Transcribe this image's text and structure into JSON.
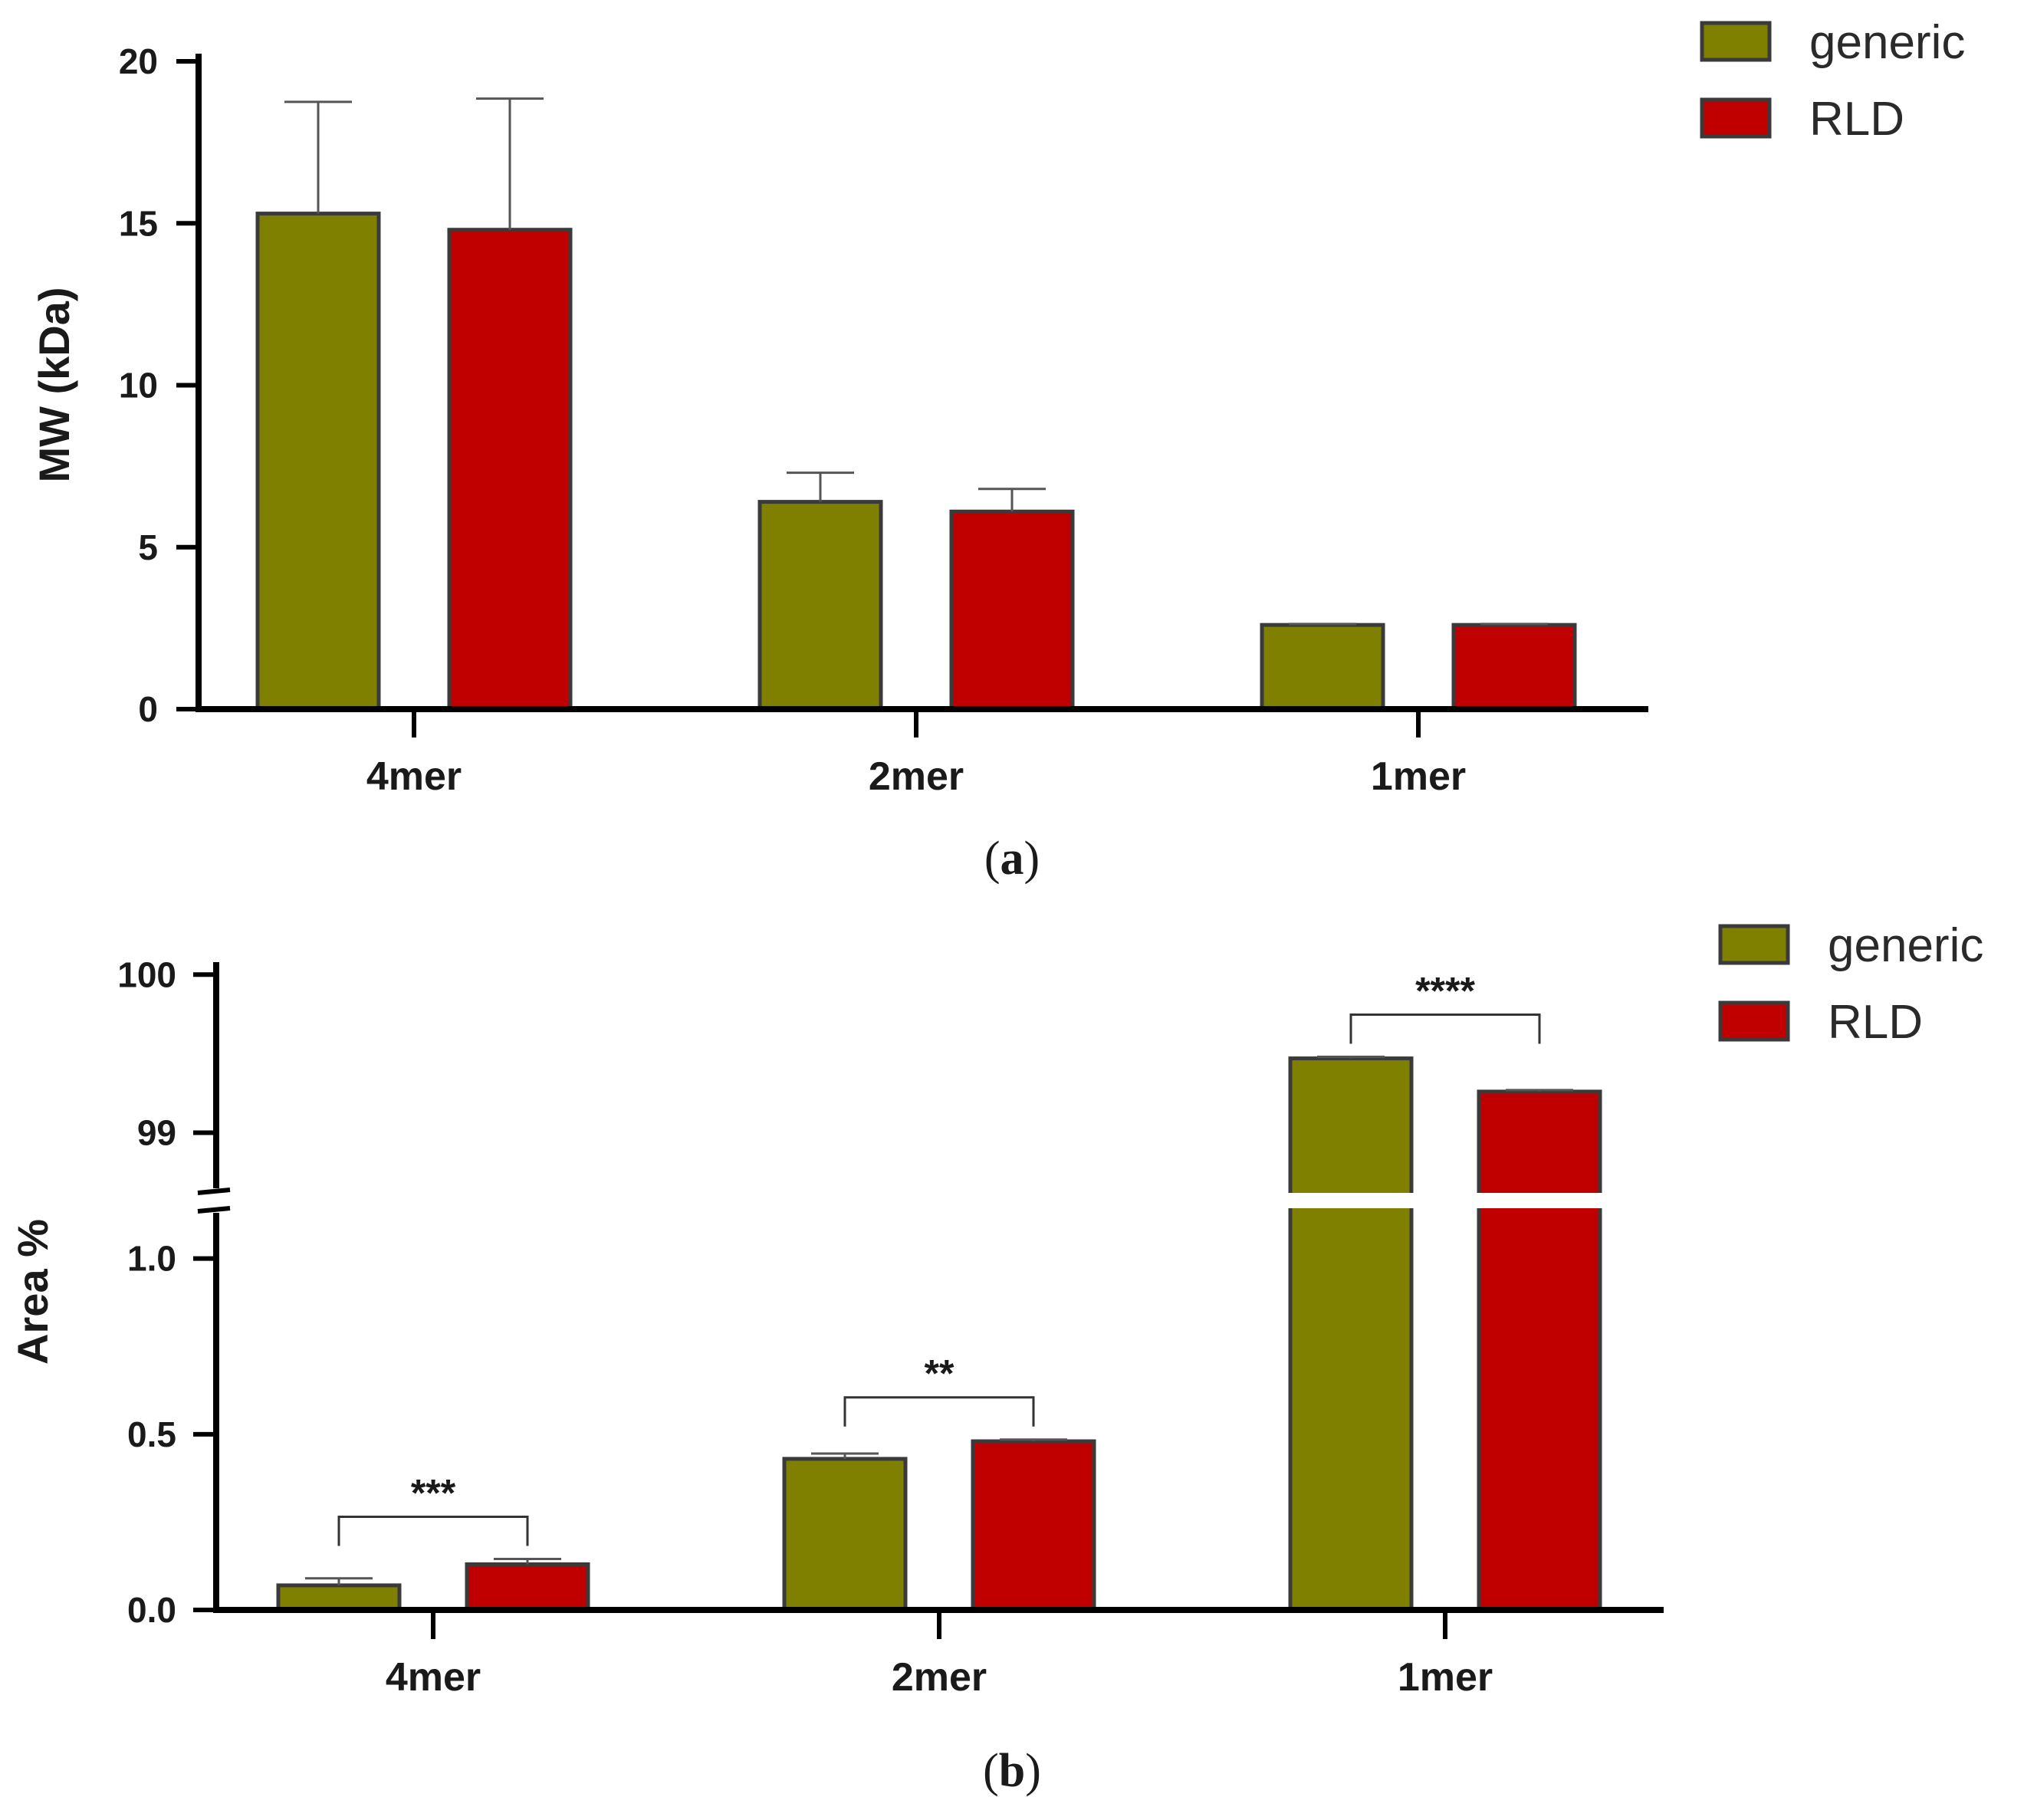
{
  "colors": {
    "generic": "#808000",
    "rld": "#C00000",
    "outline": "#3a3a3a",
    "axis": "#000000"
  },
  "chart_data": [
    {
      "type": "bar",
      "panel_label": "a",
      "title": "",
      "xlabel": "",
      "ylabel": "MW (kDa)",
      "categories": [
        "4mer",
        "2mer",
        "1mer"
      ],
      "ylim": [
        0,
        20
      ],
      "yticks": [
        "0",
        "5",
        "10",
        "15",
        "20"
      ],
      "series": [
        {
          "name": "generic",
          "values": [
            15.3,
            6.4,
            2.6
          ],
          "errors": [
            3.45,
            0.9,
            0.03
          ]
        },
        {
          "name": "RLD",
          "values": [
            14.8,
            6.1,
            2.6
          ],
          "errors": [
            4.05,
            0.7,
            0.03
          ]
        }
      ],
      "legend": {
        "position": "top-right",
        "entries": [
          "generic",
          "RLD"
        ]
      },
      "significance": []
    },
    {
      "type": "bar",
      "panel_label": "b",
      "title": "",
      "xlabel": "",
      "ylabel": "Area %",
      "categories": [
        "4mer",
        "2mer",
        "1mer"
      ],
      "axis_break": {
        "lower_range": [
          0,
          1.2
        ],
        "upper_range": [
          98.6,
          100.2
        ]
      },
      "yticks_lower": [
        "0.0",
        "0.5",
        "1.0"
      ],
      "yticks_upper": [
        "99",
        "100"
      ],
      "series": [
        {
          "name": "generic",
          "values": [
            0.07,
            0.43,
            99.47
          ],
          "errors": [
            0.02,
            0.015,
            0.01
          ]
        },
        {
          "name": "RLD",
          "values": [
            0.13,
            0.48,
            99.26
          ],
          "errors": [
            0.015,
            0.005,
            0.01
          ]
        }
      ],
      "legend": {
        "position": "top-right",
        "entries": [
          "generic",
          "RLD"
        ]
      },
      "significance": [
        {
          "category": "4mer",
          "label": "***"
        },
        {
          "category": "2mer",
          "label": "**"
        },
        {
          "category": "1mer",
          "label": "****"
        }
      ]
    }
  ]
}
